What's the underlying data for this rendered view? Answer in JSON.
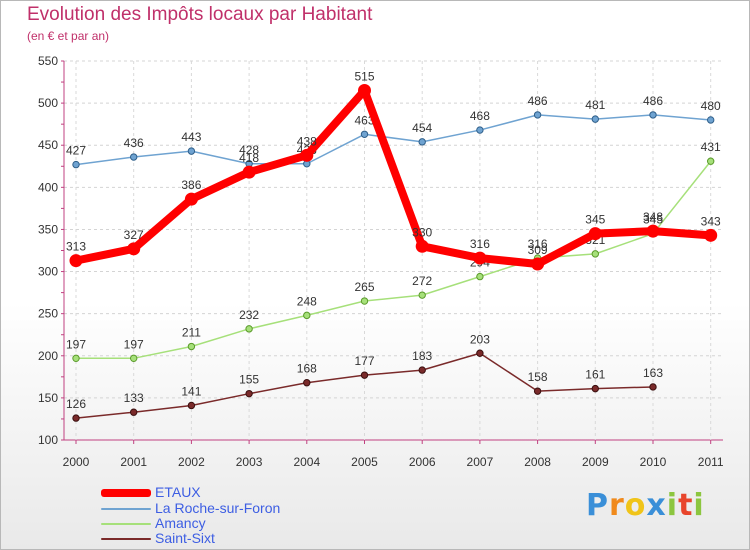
{
  "chart_data": {
    "type": "line",
    "title": "Evolution des Impôts locaux par Habitant",
    "subtitle": "(en € et par an)",
    "xlabel": "",
    "ylabel": "",
    "ylim": [
      100,
      550
    ],
    "yticks": [
      100,
      150,
      200,
      250,
      300,
      350,
      400,
      450,
      500,
      550
    ],
    "grid": true,
    "legend_position": "bottom-left",
    "x": [
      "2000",
      "2001",
      "2002",
      "2003",
      "2004",
      "2005",
      "2006",
      "2007",
      "2008",
      "2009",
      "2010",
      "2011"
    ],
    "series": [
      {
        "name": "ETAUX",
        "color": "#ff0000",
        "values": [
          313,
          327,
          386,
          418,
          438,
          515,
          330,
          316,
          309,
          345,
          348,
          343
        ]
      },
      {
        "name": "La Roche-sur-Foron",
        "color": "#6fa3d1",
        "values": [
          427,
          436,
          443,
          428,
          428,
          463,
          454,
          468,
          486,
          481,
          486,
          480
        ]
      },
      {
        "name": "Amancy",
        "color": "#a6e07a",
        "values": [
          197,
          197,
          211,
          232,
          248,
          265,
          272,
          294,
          316,
          321,
          345,
          431
        ]
      },
      {
        "name": "Saint-Sixt",
        "color": "#7a2a2a",
        "values": [
          126,
          133,
          141,
          155,
          168,
          177,
          183,
          203,
          158,
          161,
          163,
          null
        ]
      }
    ]
  },
  "branding": {
    "logo_letters": [
      "P",
      "r",
      "o",
      "x",
      "i",
      "t",
      "i"
    ],
    "logo_colors": [
      "#3a8fd8",
      "#f08a1c",
      "#f0c419",
      "#3a8fd8",
      "#8cc63f",
      "#e8452c",
      "#8cc63f"
    ]
  }
}
